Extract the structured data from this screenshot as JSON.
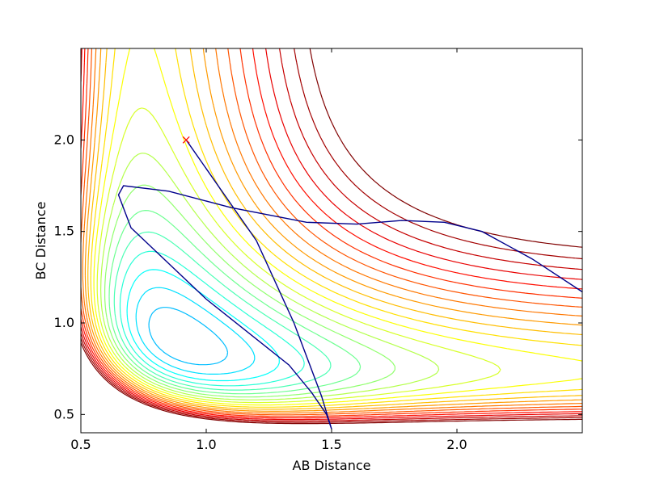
{
  "chart_data": {
    "type": "contour",
    "title": "",
    "xlabel": "AB Distance",
    "ylabel": "BC Distance",
    "xlim": [
      0.5,
      2.5
    ],
    "ylim": [
      0.4,
      2.5
    ],
    "xticks": [
      {
        "value": 0.5,
        "label": "0.5"
      },
      {
        "value": 1.0,
        "label": "1.0"
      },
      {
        "value": 1.5,
        "label": "1.5"
      },
      {
        "value": 2.0,
        "label": "2.0"
      }
    ],
    "yticks": [
      {
        "value": 0.5,
        "label": "0.5"
      },
      {
        "value": 1.0,
        "label": "1.0"
      },
      {
        "value": 1.5,
        "label": "1.5"
      },
      {
        "value": 2.0,
        "label": "2.0"
      }
    ],
    "grid": false,
    "colormap": "jet",
    "contour_levels": 30,
    "start_marker": {
      "x": 0.92,
      "y": 2.0,
      "symbol": "x",
      "color": "#ff0000"
    },
    "trajectory": {
      "color": "#00008b",
      "points": [
        [
          0.92,
          2.0
        ],
        [
          1.2,
          1.45
        ],
        [
          1.35,
          1.0
        ],
        [
          1.46,
          0.6
        ],
        [
          1.5,
          0.42
        ],
        [
          1.48,
          0.5
        ],
        [
          1.42,
          0.62
        ],
        [
          1.33,
          0.77
        ],
        [
          1.0,
          1.13
        ],
        [
          0.7,
          1.52
        ],
        [
          0.65,
          1.7
        ],
        [
          0.67,
          1.75
        ],
        [
          0.85,
          1.72
        ],
        [
          1.1,
          1.63
        ],
        [
          1.4,
          1.55
        ],
        [
          1.6,
          1.54
        ],
        [
          1.78,
          1.56
        ],
        [
          1.95,
          1.55
        ],
        [
          2.1,
          1.5
        ],
        [
          2.3,
          1.35
        ],
        [
          2.5,
          1.17
        ]
      ]
    }
  }
}
